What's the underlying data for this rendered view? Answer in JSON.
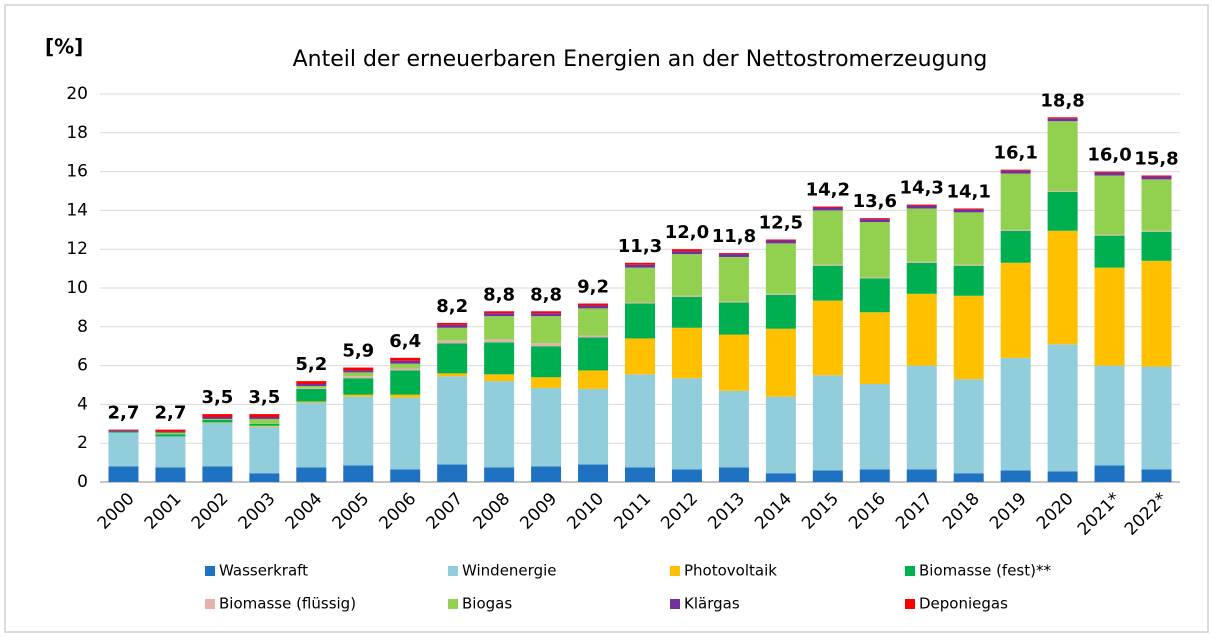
{
  "chart_data": {
    "type": "stacked_bar",
    "title": "Anteil der erneuerbaren Energien an der Nettostromerzeugung",
    "y_label": "[%]",
    "categories": [
      "2000",
      "2001",
      "2002",
      "2003",
      "2004",
      "2005",
      "2006",
      "2007",
      "2008",
      "2009",
      "2010",
      "2011",
      "2012",
      "2013",
      "2014",
      "2015",
      "2016",
      "2017",
      "2018",
      "2019",
      "2020",
      "2021*",
      "2022*"
    ],
    "series": [
      {
        "name": "Wasserkraft",
        "color": "#1f72c2",
        "values": [
          0.8,
          0.75,
          0.8,
          0.45,
          0.75,
          0.85,
          0.65,
          0.9,
          0.75,
          0.8,
          0.9,
          0.75,
          0.65,
          0.75,
          0.45,
          0.6,
          0.65,
          0.65,
          0.45,
          0.6,
          0.55,
          0.85,
          0.65
        ]
      },
      {
        "name": "Windenergie",
        "color": "#92cddc",
        "values": [
          1.75,
          1.6,
          2.25,
          2.4,
          3.35,
          3.55,
          3.7,
          4.55,
          4.45,
          4.05,
          3.9,
          4.8,
          4.7,
          3.95,
          3.95,
          4.9,
          4.4,
          5.35,
          4.85,
          5.8,
          6.55,
          5.15,
          5.3
        ]
      },
      {
        "name": "Photovoltaik",
        "color": "#ffc000",
        "values": [
          0,
          0,
          0.02,
          0.05,
          0.05,
          0.1,
          0.15,
          0.15,
          0.35,
          0.55,
          0.95,
          1.85,
          2.6,
          2.9,
          3.5,
          3.85,
          3.7,
          3.7,
          4.3,
          4.9,
          5.85,
          5.05,
          5.45
        ]
      },
      {
        "name": "Biomasse (fest)**",
        "color": "#00b050",
        "values": [
          0.05,
          0.1,
          0.13,
          0.1,
          0.65,
          0.85,
          1.25,
          1.55,
          1.65,
          1.6,
          1.7,
          1.8,
          1.6,
          1.65,
          1.75,
          1.8,
          1.75,
          1.6,
          1.55,
          1.65,
          2.0,
          1.65,
          1.5
        ]
      },
      {
        "name": "Biomasse (flüssig)",
        "color": "#e6b0b0",
        "values": [
          0,
          0,
          0,
          0,
          0.05,
          0.1,
          0.1,
          0.15,
          0.15,
          0.15,
          0.1,
          0.05,
          0.05,
          0.05,
          0.05,
          0.05,
          0.05,
          0.05,
          0.05,
          0.05,
          0.05,
          0.05,
          0.05
        ]
      },
      {
        "name": "Biogas",
        "color": "#92d050",
        "values": [
          0,
          0.1,
          0.05,
          0.25,
          0.1,
          0.2,
          0.25,
          0.65,
          1.2,
          1.4,
          1.4,
          1.8,
          2.15,
          2.3,
          2.6,
          2.8,
          2.85,
          2.75,
          2.7,
          2.9,
          3.6,
          3.05,
          2.65
        ]
      },
      {
        "name": "Klärgas",
        "color": "#7030a0",
        "values": [
          0.05,
          0.05,
          0.1,
          0.1,
          0.1,
          0.1,
          0.15,
          0.15,
          0.15,
          0.15,
          0.15,
          0.15,
          0.15,
          0.15,
          0.15,
          0.15,
          0.15,
          0.15,
          0.15,
          0.15,
          0.15,
          0.15,
          0.15
        ]
      },
      {
        "name": "Deponiegas",
        "color": "#ff0000",
        "values": [
          0.05,
          0.1,
          0.15,
          0.15,
          0.15,
          0.15,
          0.15,
          0.1,
          0.1,
          0.1,
          0.1,
          0.1,
          0.1,
          0.05,
          0.05,
          0.05,
          0.05,
          0.05,
          0.05,
          0.05,
          0.05,
          0.05,
          0.05
        ]
      }
    ],
    "totals": [
      2.7,
      2.7,
      3.5,
      3.5,
      5.2,
      5.9,
      6.4,
      8.2,
      8.8,
      8.8,
      9.2,
      11.3,
      12.0,
      11.8,
      12.5,
      14.2,
      13.6,
      14.3,
      14.1,
      16.1,
      18.8,
      16.0,
      15.8
    ],
    "total_labels": [
      "2,7",
      "2,7",
      "3,5",
      "3,5",
      "5,2",
      "5,9",
      "6,4",
      "8,2",
      "8,8",
      "8,8",
      "9,2",
      "11,3",
      "12,0",
      "11,8",
      "12,5",
      "14,2",
      "13,6",
      "14,3",
      "14,1",
      "16,1",
      "18,8",
      "16,0",
      "15,8"
    ],
    "ylim": [
      0,
      20
    ],
    "yticks": [
      0,
      2,
      4,
      6,
      8,
      10,
      12,
      14,
      16,
      18,
      20
    ],
    "grid": true
  }
}
